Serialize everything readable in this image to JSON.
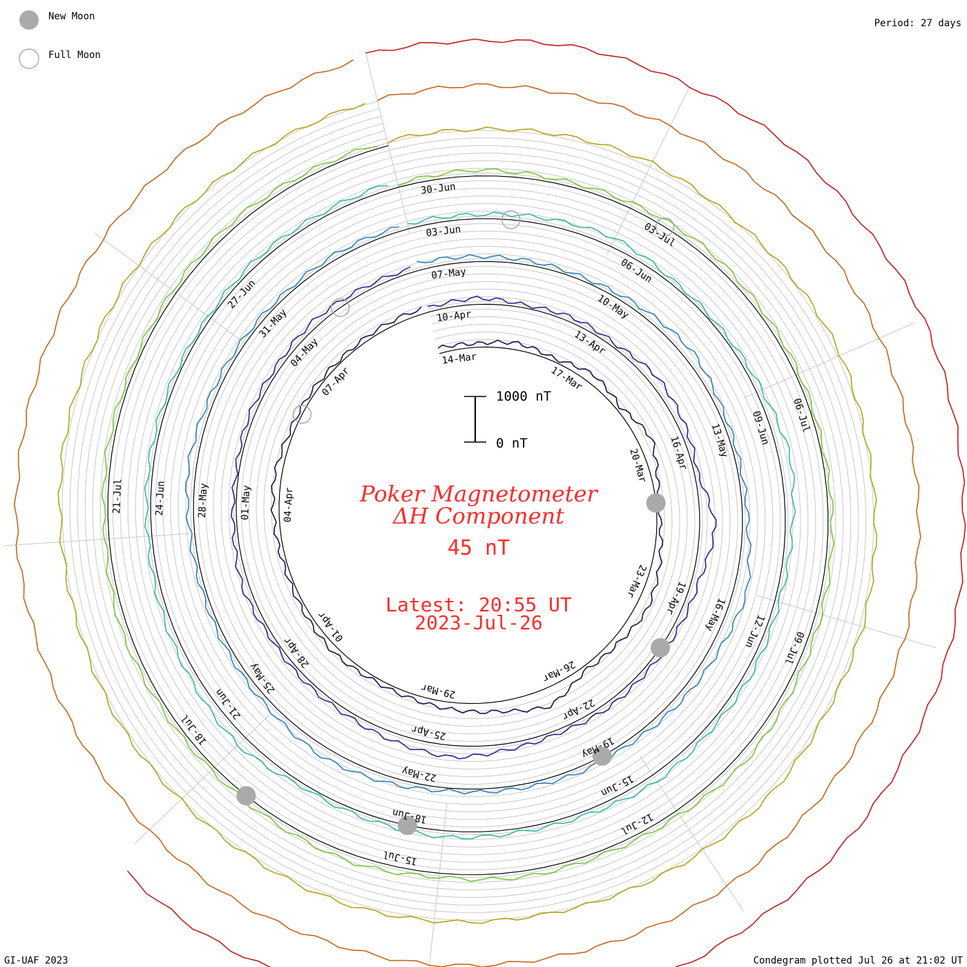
{
  "legend": {
    "new_moon": "New Moon",
    "full_moon": "Full Moon"
  },
  "period": "Period: 27 days",
  "footer_left": "GI-UAF 2023",
  "footer_right": "Condegram plotted Jul 26 at 21:02 UT",
  "title": {
    "line1": "Poker Magnetometer",
    "line2": "ΔH Component",
    "baseline_value": "45 nT",
    "latest_line1": "Latest: 20:55 UT",
    "latest_line2": "2023-Jul-26"
  },
  "scale": {
    "top_label": "1000 nT",
    "bottom_label": "0 nT"
  },
  "colors": {
    "title": "#ff2b2b",
    "grid": "#c8c8c8",
    "moon_fill": "#aaaaaa",
    "rotations": [
      "#1a0f4d",
      "#23238f",
      "#2e7fc0",
      "#35b8a6",
      "#7cc43a",
      "#b4a318",
      "#c8651a",
      "#c41a1a"
    ]
  },
  "chart_data": {
    "type": "line",
    "subtype": "condegram-spiral",
    "title": "Poker Magnetometer ΔH Component",
    "baseline": "45 nT",
    "period_days": 27,
    "scale_bar": [
      "0 nT",
      "1000 nT"
    ],
    "date_labels": [
      {
        "label": "14-Mar",
        "day": 0.5
      },
      {
        "label": "17-Mar",
        "day": 3.5
      },
      {
        "label": "20-Mar",
        "day": 6.5
      },
      {
        "label": "23-Mar",
        "day": 9.5
      },
      {
        "label": "26-Mar",
        "day": 12.5
      },
      {
        "label": "29-Mar",
        "day": 15.5
      },
      {
        "label": "01-Apr",
        "day": 18.5
      },
      {
        "label": "04-Apr",
        "day": 21.5
      },
      {
        "label": "07-Apr",
        "day": 24.5
      },
      {
        "label": "10-Apr",
        "day": 27.5
      },
      {
        "label": "13-Apr",
        "day": 30.5
      },
      {
        "label": "16-Apr",
        "day": 33.5
      },
      {
        "label": "19-Apr",
        "day": 36.5
      },
      {
        "label": "22-Apr",
        "day": 39.5
      },
      {
        "label": "25-Apr",
        "day": 42.5
      },
      {
        "label": "28-Apr",
        "day": 45.5
      },
      {
        "label": "01-May",
        "day": 48.5
      },
      {
        "label": "04-May",
        "day": 51.5
      },
      {
        "label": "07-May",
        "day": 54.5
      },
      {
        "label": "10-May",
        "day": 57.5
      },
      {
        "label": "13-May",
        "day": 60.5
      },
      {
        "label": "16-May",
        "day": 63.5
      },
      {
        "label": "19-May",
        "day": 66.5
      },
      {
        "label": "22-May",
        "day": 69.5
      },
      {
        "label": "25-May",
        "day": 72.5
      },
      {
        "label": "28-May",
        "day": 75.5
      },
      {
        "label": "31-May",
        "day": 78.5
      },
      {
        "label": "03-Jun",
        "day": 81.5
      },
      {
        "label": "06-Jun",
        "day": 84.5
      },
      {
        "label": "09-Jun",
        "day": 87.5
      },
      {
        "label": "12-Jun",
        "day": 90.5
      },
      {
        "label": "15-Jun",
        "day": 93.5
      },
      {
        "label": "18-Jun",
        "day": 96.5
      },
      {
        "label": "21-Jun",
        "day": 99.5
      },
      {
        "label": "24-Jun",
        "day": 102.5
      },
      {
        "label": "27-Jun",
        "day": 105.5
      },
      {
        "label": "30-Jun",
        "day": 108.5
      },
      {
        "label": "03-Jul",
        "day": 111.5
      },
      {
        "label": "06-Jul",
        "day": 114.5
      },
      {
        "label": "09-Jul",
        "day": 117.5
      },
      {
        "label": "12-Jul",
        "day": 120.5
      },
      {
        "label": "15-Jul",
        "day": 123.5
      },
      {
        "label": "18-Jul",
        "day": 126.5
      },
      {
        "label": "21-Jul",
        "day": 129.5
      }
    ],
    "new_moons": [
      "2023-Mar-21",
      "2023-Apr-20",
      "2023-May-19",
      "2023-Jun-18",
      "2023-Jul-17"
    ],
    "full_moons": [
      "2023-Apr-06",
      "2023-May-05",
      "2023-Jun-04",
      "2023-Jul-03"
    ],
    "series": [
      {
        "values": [
          120,
          80,
          150,
          60,
          200,
          90,
          300,
          110,
          70,
          180,
          260,
          140,
          90,
          400,
          220,
          160,
          100,
          80,
          130,
          90,
          70,
          110,
          160,
          90,
          80,
          60,
          95,
          120
        ]
      },
      {
        "values": [
          90,
          140,
          60,
          110,
          80,
          200,
          150,
          70,
          350,
          160,
          120,
          90,
          110,
          75,
          130,
          260,
          180,
          100,
          90,
          70,
          150,
          80,
          60,
          110,
          90,
          140,
          100,
          85
        ]
      },
      {
        "values": [
          160,
          110,
          90,
          70,
          130,
          210,
          100,
          80,
          120,
          300,
          190,
          140,
          90,
          110,
          70,
          60,
          150,
          220,
          130,
          95,
          80,
          100,
          180,
          120,
          90,
          75,
          110,
          90
        ]
      },
      {
        "values": [
          110,
          90,
          140,
          200,
          80,
          70,
          120,
          260,
          150,
          95,
          130,
          110,
          170,
          90,
          80,
          140,
          100,
          70,
          230,
          160,
          120,
          90,
          100,
          80,
          60,
          110,
          95,
          130
        ]
      },
      {
        "values": [
          70,
          130,
          90,
          110,
          150,
          100,
          80,
          60,
          95,
          120,
          140,
          200,
          110,
          90,
          130,
          80,
          170,
          120,
          90,
          100,
          150,
          80,
          110,
          70,
          90,
          130,
          100,
          85
        ]
      },
      {
        "values": [
          100,
          80,
          120,
          160,
          90,
          110,
          140,
          75,
          100,
          130,
          90,
          150,
          120,
          85,
          70,
          110,
          140,
          100,
          90,
          120,
          80,
          100,
          130,
          95,
          110,
          90,
          75,
          100
        ]
      },
      {
        "values": [
          90,
          110,
          80,
          120,
          100,
          150,
          130,
          95,
          110,
          140,
          100,
          80,
          120,
          100,
          90,
          130,
          110,
          150,
          120,
          95,
          100,
          140,
          110,
          90,
          120,
          100,
          80,
          110
        ]
      },
      {
        "values": [
          180,
          140,
          200,
          160,
          220,
          170,
          240,
          190,
          150,
          210,
          180,
          200,
          160,
          230,
          190,
          170,
          150,
          200,
          180
        ]
      }
    ]
  }
}
